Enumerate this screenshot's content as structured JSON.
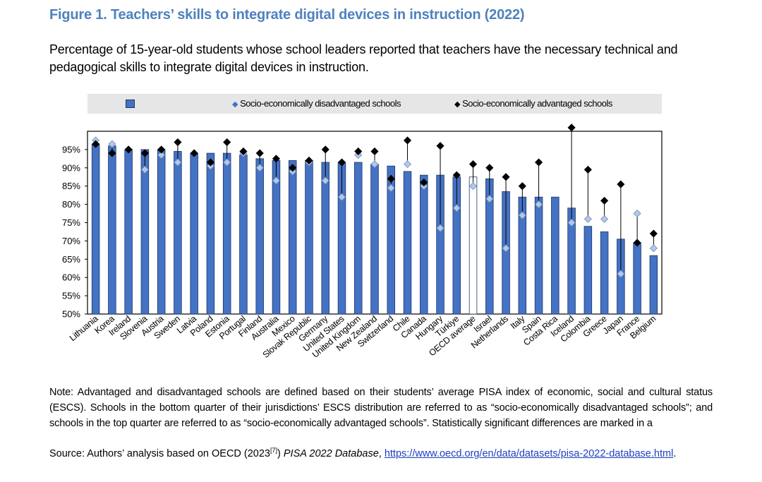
{
  "header": {
    "title": "Figure 1. Teachers’ skills to integrate digital devices in instruction (2022)",
    "subtitle": "Percentage of 15-year-old students whose school leaders reported that teachers have the necessary technical and pedagogical skills to integrate digital devices in instruction."
  },
  "legend": {
    "bar_label": "",
    "disadvantaged_label": "Socio-economically disadvantaged schools",
    "advantaged_label": "Socio-economically advantaged schools"
  },
  "footer": {
    "note": "Note: Advantaged and disadvantaged schools are defined based on their students’ average PISA index of economic, social and cultural status (ESCS). Schools in the bottom quarter of their jurisdictions’ ESCS distribution are referred to as “socio-economically disadvantaged schools”; and schools in the top quarter are referred to as “socio-economically advantaged schools”. Statistically significant differences are marked in a",
    "source_prefix": "Source: Authors’ analysis based on OECD (2023",
    "source_ref": "[7]",
    "source_mid": ") ",
    "source_italic": "PISA 2022 Database",
    "source_sep": ", ",
    "source_link": "https://www.oecd.org/en/data/datasets/pisa-2022-database.html",
    "source_end": "."
  },
  "colors": {
    "title": "#4f81bd",
    "bar": "#4472c4",
    "bar_outline": "#1f3864",
    "disadvantaged_marker": "#b4c7e7",
    "advantaged_marker": "#000000",
    "oecd_bar": "#ffffff"
  },
  "chart_data": {
    "type": "bar",
    "ylim": [
      50,
      100
    ],
    "yticks": [
      "50%",
      "55%",
      "60%",
      "65%",
      "70%",
      "75%",
      "80%",
      "85%",
      "90%",
      "95%"
    ],
    "categories": [
      "Lithuania",
      "Korea",
      "Ireland",
      "Slovenia",
      "Austria",
      "Sweden",
      "Latvia",
      "Poland",
      "Estonia",
      "Portugal",
      "Finland",
      "Australia",
      "Mexico",
      "Slovak Republic",
      "Germany",
      "United States",
      "United Kingdom",
      "New Zealand",
      "Switzerland",
      "Chile",
      "Canada",
      "Hungary",
      "Türkiye",
      "OECD average",
      "Israel",
      "Netherlands",
      "Italy",
      "Spain",
      "Costa Rica",
      "Iceland",
      "Colombia",
      "Greece",
      "Japan",
      "France",
      "Belgium"
    ],
    "highlight_category": "OECD average",
    "series": [
      {
        "name": "",
        "values": [
          96.5,
          96,
          95,
          95,
          95,
          94.5,
          94,
          94,
          94,
          93.5,
          92.5,
          92,
          92,
          92,
          91.5,
          91.5,
          91.5,
          91,
          90.5,
          89,
          88,
          88,
          87.5,
          87.5,
          87,
          83.5,
          82,
          82,
          82,
          79,
          74,
          72.5,
          70.5,
          69.5,
          66
        ]
      },
      {
        "name": "Socio-economically disadvantaged schools",
        "values": [
          97.5,
          96.5,
          95,
          89.5,
          93.5,
          91.5,
          94,
          90.5,
          91.5,
          94,
          90,
          86.5,
          89,
          91.5,
          86.5,
          82,
          93.5,
          91,
          84.5,
          91,
          85,
          73.5,
          79,
          85,
          81.5,
          68,
          77,
          80,
          null,
          75,
          76,
          76,
          61,
          77.5,
          68
        ]
      },
      {
        "name": "Socio-economically advantaged schools",
        "values": [
          96.5,
          94,
          95,
          94,
          95,
          97,
          94,
          91.5,
          97,
          94.5,
          94,
          92.5,
          90,
          92,
          95,
          91.5,
          94.5,
          94.5,
          87,
          97.5,
          86,
          96,
          88,
          91,
          90,
          87.5,
          85,
          91.5,
          null,
          101,
          89.5,
          81,
          85.5,
          69.5,
          72
        ]
      }
    ]
  }
}
